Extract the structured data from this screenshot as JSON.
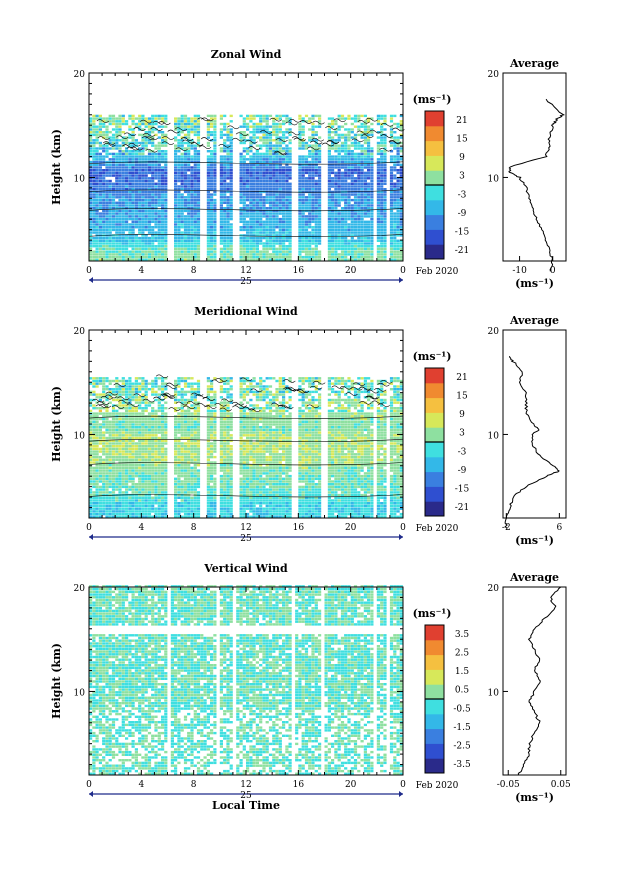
{
  "chart_data": [
    {
      "type": "heatmap",
      "title": "Zonal Wind",
      "ylabel": "Height (km)",
      "unit_label": "(ms⁻¹)",
      "date_label": "Feb 2020",
      "day_label": "25",
      "xticks": [
        "0",
        "4",
        "8",
        "12",
        "16",
        "20",
        "0"
      ],
      "yticks": [
        "20",
        "10"
      ],
      "colorbar_ticks": [
        "21",
        "15",
        "9",
        "3",
        "-3",
        "-9",
        "-15",
        "-21"
      ],
      "data_top_km": 16,
      "gaps_hours": [
        [
          5.8,
          6.3
        ],
        [
          8.3,
          8.8
        ],
        [
          9.7,
          10.0
        ],
        [
          10.9,
          11.4
        ],
        [
          15.3,
          15.8
        ],
        [
          17.7,
          18.1
        ],
        [
          21.6,
          21.9
        ],
        [
          22.6,
          23.0
        ]
      ],
      "profile_anchors": [
        [
          1,
          4
        ],
        [
          3,
          0
        ],
        [
          4,
          -6
        ],
        [
          6,
          -8
        ],
        [
          8,
          -10
        ],
        [
          9.5,
          -13
        ],
        [
          10.5,
          -14
        ],
        [
          11.5,
          -8
        ],
        [
          13,
          -2
        ],
        [
          14.5,
          -1
        ],
        [
          15.5,
          2
        ],
        [
          16.2,
          0
        ]
      ],
      "average": {
        "title": "Average",
        "unit_label": "(ms⁻¹)",
        "xticks": [
          "-10",
          "0"
        ],
        "xlim": [
          -15,
          4
        ],
        "y": [
          1,
          2,
          3,
          4,
          5,
          6,
          7,
          8,
          9,
          10,
          10.5,
          11,
          12,
          13,
          14,
          15,
          15.5,
          16,
          17.5
        ],
        "values": [
          -1,
          0,
          -1,
          -2,
          -3,
          -5,
          -6,
          -7,
          -8,
          -10,
          -13,
          -13,
          -2,
          -1,
          -1,
          0,
          1,
          3,
          -2
        ]
      }
    },
    {
      "type": "heatmap",
      "title": "Meridional Wind",
      "ylabel": "Height (km)",
      "unit_label": "(ms⁻¹)",
      "date_label": "Feb 2020",
      "day_label": "25",
      "xticks": [
        "0",
        "4",
        "8",
        "12",
        "16",
        "20",
        "0"
      ],
      "yticks": [
        "20",
        "10"
      ],
      "colorbar_ticks": [
        "21",
        "15",
        "9",
        "3",
        "-3",
        "-9",
        "-15",
        "-21"
      ],
      "data_top_km": 15.5,
      "gaps_hours": [
        [
          5.8,
          6.3
        ],
        [
          8.3,
          8.8
        ],
        [
          9.6,
          9.9
        ],
        [
          10.9,
          11.4
        ],
        [
          15.3,
          15.8
        ],
        [
          17.7,
          18.1
        ],
        [
          21.6,
          21.9
        ],
        [
          22.6,
          23.0
        ]
      ],
      "profile_anchors": [
        [
          1,
          -3
        ],
        [
          3,
          -4
        ],
        [
          5,
          1
        ],
        [
          6.5,
          2
        ],
        [
          8,
          4
        ],
        [
          9.5,
          5
        ],
        [
          10.5,
          1
        ],
        [
          12,
          3
        ],
        [
          13.5,
          0
        ],
        [
          15,
          1
        ],
        [
          16,
          -1
        ]
      ],
      "average": {
        "title": "Average",
        "unit_label": "(ms⁻¹)",
        "xticks": [
          "-2",
          "6"
        ],
        "xlim": [
          -2.5,
          7
        ],
        "y": [
          1,
          2,
          3,
          4,
          5,
          6,
          6.5,
          7,
          8,
          9,
          10,
          10.5,
          11,
          12,
          13,
          14,
          15,
          16,
          17,
          17.5
        ],
        "values": [
          -2,
          -2,
          -1.5,
          -1,
          1,
          4,
          6,
          5,
          3,
          2,
          2,
          3,
          2,
          1,
          1,
          1,
          0,
          0.5,
          -1,
          -1.5
        ]
      }
    },
    {
      "type": "heatmap",
      "title": "Vertical Wind",
      "ylabel": "Height (km)",
      "xlabel": "Local Time",
      "unit_label": "(ms⁻¹)",
      "date_label": "Feb 2020",
      "day_label": "25",
      "xticks": [
        "0",
        "4",
        "8",
        "12",
        "16",
        "20",
        "0"
      ],
      "yticks": [
        "20",
        "10"
      ],
      "colorbar_ticks": [
        "3.5",
        "2.5",
        "1.5",
        "0.5",
        "-0.5",
        "-1.5",
        "-2.5",
        "-3.5"
      ],
      "data_top_km": 20,
      "gaps_hours": [
        [
          5.8,
          6.2
        ],
        [
          9.7,
          10.0
        ],
        [
          10.9,
          11.2
        ],
        [
          15.3,
          15.6
        ],
        [
          17.7,
          18.0
        ],
        [
          21.6,
          21.9
        ],
        [
          22.6,
          23.0
        ]
      ],
      "profile_anchors": [],
      "average": {
        "title": "Average",
        "unit_label": "(ms⁻¹)",
        "xticks": [
          "-0.05",
          "0.05"
        ],
        "xlim": [
          -0.06,
          0.06
        ],
        "y": [
          2,
          3,
          4,
          5,
          6,
          7,
          8,
          9,
          10,
          11,
          12,
          13,
          14,
          15,
          16,
          17,
          18,
          19,
          20
        ],
        "values": [
          -0.03,
          -0.02,
          -0.01,
          -0.01,
          0.0,
          0.01,
          0.0,
          -0.01,
          0.0,
          0.01,
          0.0,
          0.01,
          0.0,
          -0.01,
          0.0,
          0.02,
          0.04,
          0.03,
          0.05
        ]
      }
    }
  ]
}
